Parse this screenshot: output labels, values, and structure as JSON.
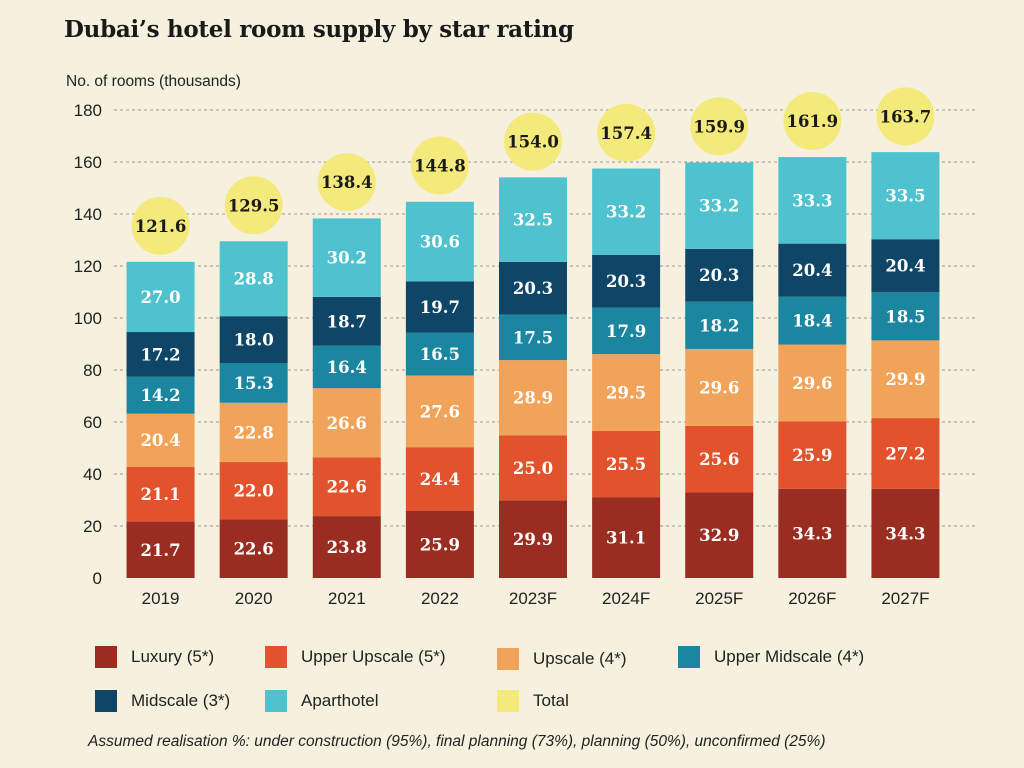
{
  "title": "Dubai’s hotel room supply by star rating",
  "footnote": "Assumed realisation %:  under construction (95%), final planning (73%), planning (50%), unconfirmed (25%)",
  "colors": {
    "luxury": "#9a2d22",
    "upper_upscale": "#e2522c",
    "upscale": "#f2a35a",
    "upper_midscale": "#1a869f",
    "midscale": "#0f4567",
    "aparthotel": "#4fc2cf",
    "total": "#f4ea7b"
  },
  "legend": [
    {
      "key": "luxury",
      "label": "Luxury (5*)"
    },
    {
      "key": "upper_upscale",
      "label": "Upper Upscale (5*)"
    },
    {
      "key": "upscale",
      "label": "Upscale (4*)"
    },
    {
      "key": "upper_midscale",
      "label": "Upper Midscale (4*)"
    },
    {
      "key": "midscale",
      "label": "Midscale (3*)"
    },
    {
      "key": "aparthotel",
      "label": "Aparthotel"
    },
    {
      "key": "total",
      "label": "Total"
    }
  ],
  "chart_data": {
    "type": "bar",
    "stacked": true,
    "title": "Dubai’s hotel room supply by star rating",
    "ylabel": "No. of rooms (thousands)",
    "xlabel": "",
    "ylim": [
      0,
      180
    ],
    "yticks": [
      0,
      20,
      40,
      60,
      80,
      100,
      120,
      140,
      160,
      180
    ],
    "grid": true,
    "categories": [
      "2019",
      "2020",
      "2021",
      "2022",
      "2023F",
      "2024F",
      "2025F",
      "2026F",
      "2027F"
    ],
    "series": [
      {
        "name": "Luxury (5*)",
        "key": "luxury",
        "values": [
          21.7,
          22.6,
          23.8,
          25.9,
          29.9,
          31.1,
          32.9,
          34.3,
          34.3
        ]
      },
      {
        "name": "Upper Upscale (5*)",
        "key": "upper_upscale",
        "values": [
          21.1,
          22.0,
          22.6,
          24.4,
          25.0,
          25.5,
          25.6,
          25.9,
          27.2
        ]
      },
      {
        "name": "Upscale (4*)",
        "key": "upscale",
        "values": [
          20.4,
          22.8,
          26.6,
          27.6,
          28.9,
          29.5,
          29.6,
          29.6,
          29.9
        ]
      },
      {
        "name": "Upper Midscale (4*)",
        "key": "upper_midscale",
        "values": [
          14.2,
          15.3,
          16.4,
          16.5,
          17.5,
          17.9,
          18.2,
          18.4,
          18.5
        ]
      },
      {
        "name": "Midscale (3*)",
        "key": "midscale",
        "values": [
          17.2,
          18.0,
          18.7,
          19.7,
          20.3,
          20.3,
          20.3,
          20.4,
          20.4
        ]
      },
      {
        "name": "Aparthotel",
        "key": "aparthotel",
        "values": [
          27.0,
          28.8,
          30.2,
          30.6,
          32.5,
          33.2,
          33.2,
          33.3,
          33.5
        ]
      }
    ],
    "totals": {
      "name": "Total",
      "values": [
        121.6,
        129.5,
        138.4,
        144.8,
        154.0,
        157.4,
        159.9,
        161.9,
        163.7
      ]
    }
  }
}
